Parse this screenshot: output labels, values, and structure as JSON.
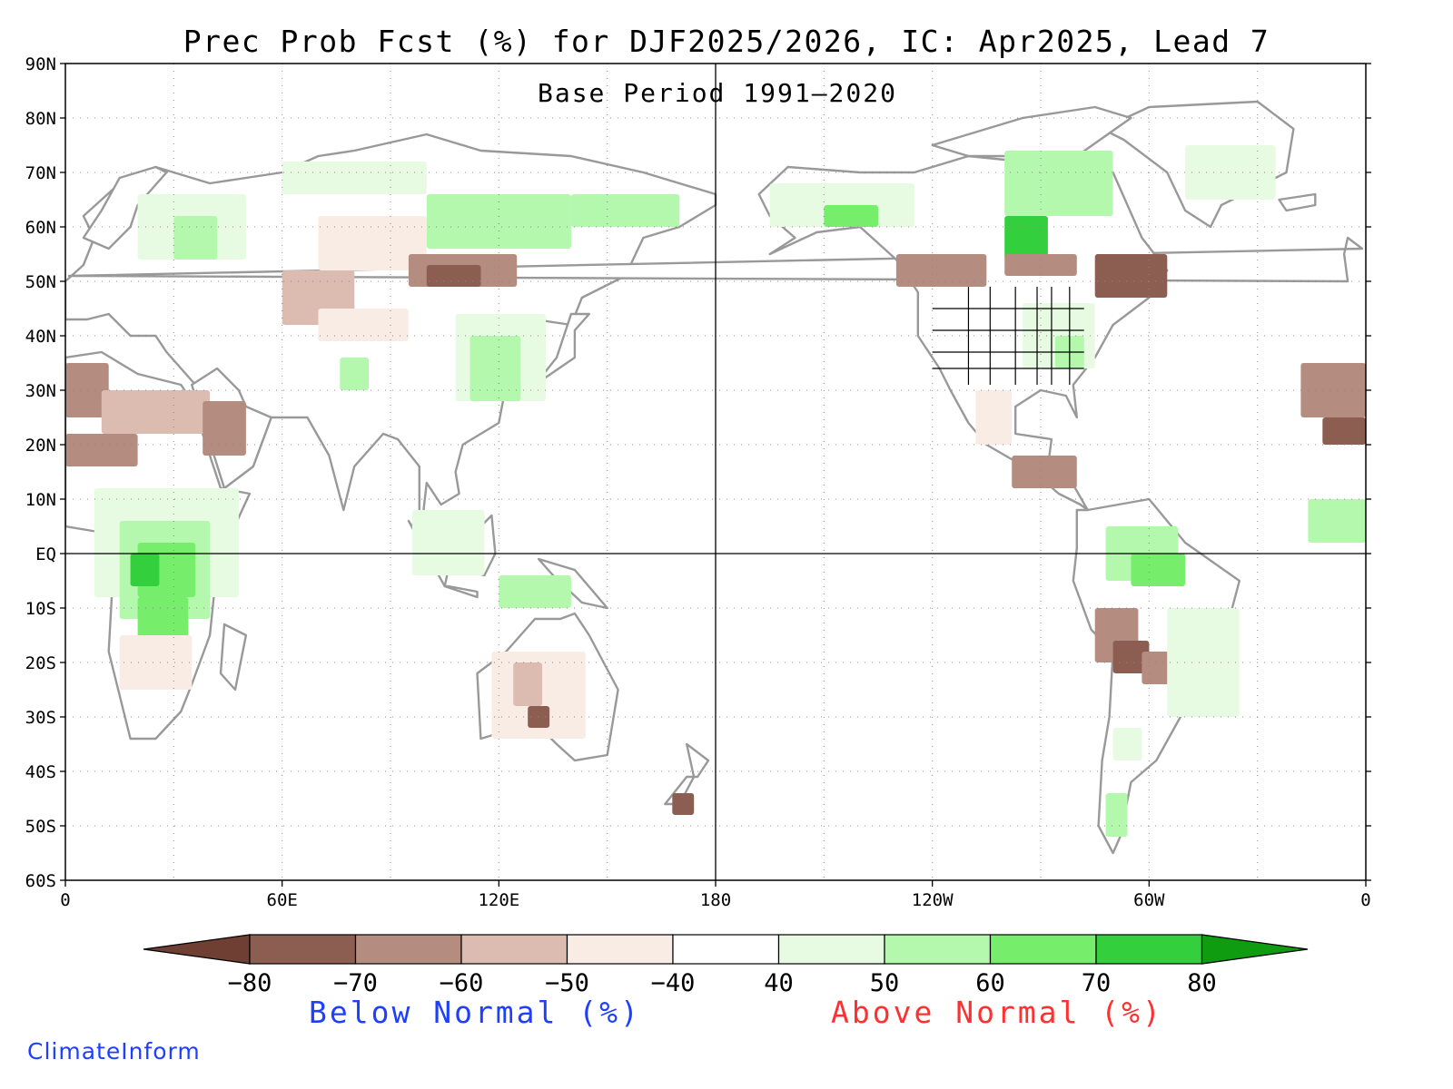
{
  "header": {
    "title": "Prec Prob Fcst (%) for DJF2025/2026, IC: Apr2025, Lead 7",
    "subtitle": "Base Period 1991–2020"
  },
  "map": {
    "projection": "equirectangular, 0E center-left, 180 center",
    "lon_range": [
      0,
      360
    ],
    "lat_range": [
      -60,
      90
    ],
    "lat_labels": [
      "90N",
      "80N",
      "70N",
      "60N",
      "50N",
      "40N",
      "30N",
      "20N",
      "10N",
      "EQ",
      "10S",
      "20S",
      "30S",
      "40S",
      "50S",
      "60S"
    ],
    "lon_labels": [
      "0",
      "60E",
      "120E",
      "180",
      "120W",
      "60W",
      "0"
    ],
    "grid_style": "dotted",
    "reference_lines": [
      "equator",
      "180 meridian"
    ],
    "coastline_color": "#999999",
    "political_border_color": "#999999",
    "us_state_border_color": "#000000"
  },
  "legend": {
    "bins": [
      {
        "range": [
          -80,
          -100
        ],
        "color": "#6e3f32",
        "shape": "left-triangle"
      },
      {
        "range": [
          -80,
          -70
        ],
        "color": "#8c5e52"
      },
      {
        "range": [
          -70,
          -60
        ],
        "color": "#b48c80"
      },
      {
        "range": [
          -60,
          -50
        ],
        "color": "#dcbcb1"
      },
      {
        "range": [
          -50,
          -40
        ],
        "color": "#f8ece4"
      },
      {
        "range": [
          -40,
          40
        ],
        "color": "#ffffff"
      },
      {
        "range": [
          40,
          50
        ],
        "color": "#e6fbe2"
      },
      {
        "range": [
          50,
          60
        ],
        "color": "#b3f8ad"
      },
      {
        "range": [
          60,
          70
        ],
        "color": "#76ee6c"
      },
      {
        "range": [
          70,
          80
        ],
        "color": "#33cf3c"
      },
      {
        "range": [
          80,
          100
        ],
        "color": "#109c10",
        "shape": "right-triangle"
      }
    ],
    "tick_labels": [
      "−80",
      "−70",
      "−60",
      "−50",
      "−40",
      "40",
      "50",
      "60",
      "70",
      "80"
    ],
    "below_label": "Below Normal (%)",
    "above_label": "Above Normal (%)",
    "below_color": "#1f3fff",
    "above_color": "#ff3030"
  },
  "footer": {
    "brand": "ClimateInform",
    "brand_color": "#1f3fff"
  }
}
